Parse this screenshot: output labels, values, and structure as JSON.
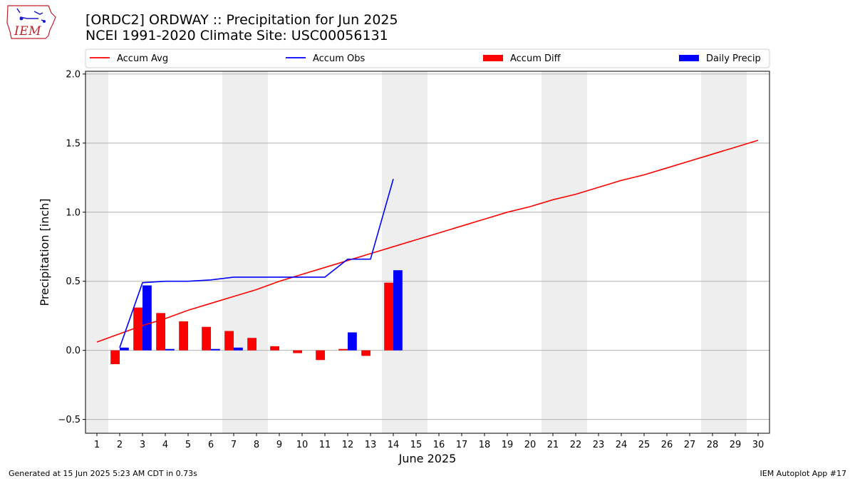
{
  "header": {
    "title_line1": "[ORDC2] ORDWAY :: Precipitation for Jun 2025",
    "title_line2": "NCEI 1991-2020 Climate Site: USC00056131",
    "logo_text": "IEM"
  },
  "footer": {
    "generated": "Generated at 15 Jun 2025 5:23 AM CDT in 0.73s",
    "app": "IEM Autoplot App #17"
  },
  "colors": {
    "avg": "#ff0000",
    "obs": "#0000ff",
    "diff": "#ff0000",
    "daily": "#0000ff",
    "weekend_shade": "#eeeeee",
    "grid": "#b0b0b0"
  },
  "chart_data": {
    "type": "bar",
    "xlabel": "June 2025",
    "ylabel": "Precipitation [inch]",
    "xlim": [
      0.5,
      30.5
    ],
    "ylim": [
      -0.6,
      2.02
    ],
    "yticks": [
      -0.5,
      0.0,
      0.5,
      1.0,
      1.5,
      2.0
    ],
    "ytick_labels": [
      "−0.5",
      "0.0",
      "0.5",
      "1.0",
      "1.5",
      "2.0"
    ],
    "days": [
      1,
      2,
      3,
      4,
      5,
      6,
      7,
      8,
      9,
      10,
      11,
      12,
      13,
      14,
      15,
      16,
      17,
      18,
      19,
      20,
      21,
      22,
      23,
      24,
      25,
      26,
      27,
      28,
      29,
      30
    ],
    "xtick_labels": [
      "1",
      "2",
      "3",
      "4",
      "5",
      "6",
      "7",
      "8",
      "9",
      "10",
      "11",
      "12",
      "13",
      "14",
      "15",
      "16",
      "17",
      "18",
      "19",
      "20",
      "21",
      "22",
      "23",
      "24",
      "25",
      "26",
      "27",
      "28",
      "29",
      "30"
    ],
    "grid": "horizontal",
    "legend_position": "top",
    "shaded_weekends": [
      [
        0.5,
        1.5
      ],
      [
        6.5,
        8.5
      ],
      [
        13.5,
        15.5
      ],
      [
        20.5,
        22.5
      ],
      [
        27.5,
        29.5
      ]
    ],
    "series": [
      {
        "name": "Accum Avg",
        "kind": "line",
        "x": [
          1,
          2,
          3,
          4,
          5,
          6,
          7,
          8,
          9,
          10,
          11,
          12,
          13,
          14,
          15,
          16,
          17,
          18,
          19,
          20,
          21,
          22,
          23,
          24,
          25,
          26,
          27,
          28,
          29,
          30
        ],
        "values": [
          0.06,
          0.12,
          0.18,
          0.23,
          0.29,
          0.34,
          0.39,
          0.44,
          0.5,
          0.55,
          0.6,
          0.65,
          0.7,
          0.75,
          0.8,
          0.85,
          0.9,
          0.95,
          1.0,
          1.04,
          1.09,
          1.13,
          1.18,
          1.23,
          1.27,
          1.32,
          1.37,
          1.42,
          1.47,
          1.52
        ]
      },
      {
        "name": "Accum Obs",
        "kind": "line",
        "x": [
          2,
          3,
          4,
          5,
          6,
          7,
          8,
          9,
          10,
          11,
          12,
          13,
          14
        ],
        "values": [
          0.02,
          0.49,
          0.5,
          0.5,
          0.51,
          0.53,
          0.53,
          0.53,
          0.53,
          0.53,
          0.66,
          0.66,
          1.24
        ]
      },
      {
        "name": "Accum Diff",
        "kind": "bar",
        "x": [
          2,
          3,
          4,
          5,
          6,
          7,
          8,
          9,
          10,
          11,
          12,
          13,
          14
        ],
        "values": [
          -0.1,
          0.31,
          0.27,
          0.21,
          0.17,
          0.14,
          0.09,
          0.03,
          -0.02,
          -0.07,
          0.01,
          -0.04,
          0.49
        ]
      },
      {
        "name": "Daily Precip",
        "kind": "bar",
        "x": [
          2,
          3,
          4,
          5,
          6,
          7,
          8,
          9,
          10,
          11,
          12,
          13,
          14
        ],
        "values": [
          0.02,
          0.47,
          0.01,
          0.0,
          0.01,
          0.02,
          0.0,
          0.0,
          0.0,
          0.0,
          0.13,
          0.0,
          0.58
        ]
      }
    ]
  }
}
